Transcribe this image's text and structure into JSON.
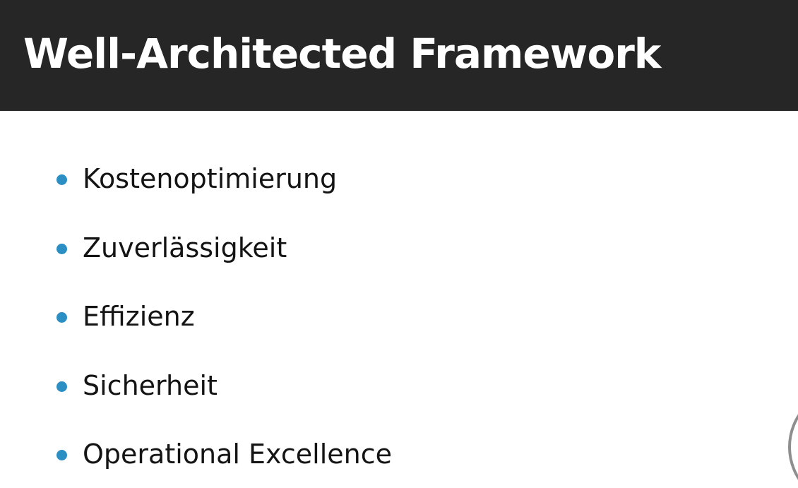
{
  "slide": {
    "title": "Well-Architected Framework",
    "bullets": [
      {
        "label": "Kostenoptimierung"
      },
      {
        "label": "Zuverlässigkeit"
      },
      {
        "label": "Effizienz"
      },
      {
        "label": "Sicherheit"
      },
      {
        "label": "Operational Excellence"
      }
    ]
  },
  "colors": {
    "title_bar": "#262626",
    "title_text": "#ffffff",
    "bullet_accent": "#2b8fc4",
    "body_text": "#141414",
    "background": "#ffffff"
  },
  "icons": {
    "bullet": "filled-circle-bullet",
    "corner": "circle-outline-partial"
  }
}
